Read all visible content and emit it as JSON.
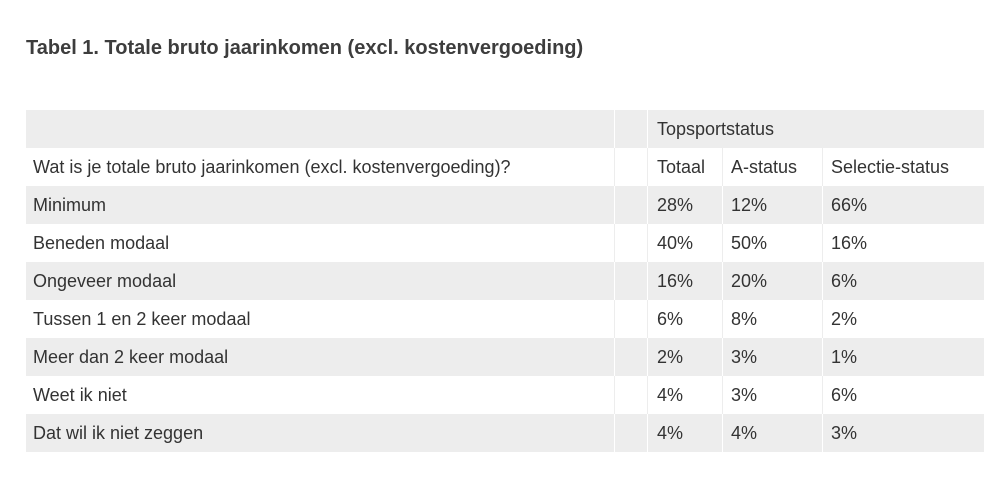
{
  "title": "Tabel 1. Totale bruto jaarinkomen (excl. kostenvergoeding)",
  "table": {
    "group_header": "Topsportstatus",
    "question": "Wat is je totale bruto jaarinkomen (excl. kostenvergoeding)?",
    "columns": [
      "Totaal",
      "A-status",
      "Selectie-status"
    ],
    "rows": [
      {
        "label": "Minimum",
        "values": [
          "28%",
          "12%",
          "66%"
        ]
      },
      {
        "label": "Beneden modaal",
        "values": [
          "40%",
          "50%",
          "16%"
        ]
      },
      {
        "label": "Ongeveer modaal",
        "values": [
          "16%",
          "20%",
          "6%"
        ]
      },
      {
        "label": "Tussen 1 en 2 keer modaal",
        "values": [
          "6%",
          "8%",
          "2%"
        ]
      },
      {
        "label": "Meer dan 2 keer modaal",
        "values": [
          "2%",
          "3%",
          "1%"
        ]
      },
      {
        "label": "Weet ik niet",
        "values": [
          "4%",
          "3%",
          "6%"
        ]
      },
      {
        "label": "Dat wil ik niet zeggen",
        "values": [
          "4%",
          "4%",
          "3%"
        ]
      }
    ]
  },
  "colors": {
    "row_shade": "#ededed",
    "text": "#333333",
    "title": "#3d3d3d"
  }
}
